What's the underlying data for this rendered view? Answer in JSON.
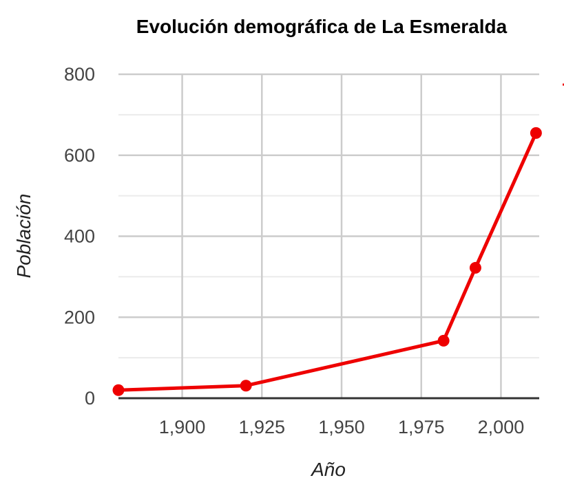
{
  "chart_data": {
    "type": "line",
    "title": "Evolución demográfica de La Esmeralda",
    "xlabel": "Año",
    "ylabel": "Población",
    "xlim": [
      1880,
      2012
    ],
    "ylim": [
      0,
      800
    ],
    "x_ticks": [
      1900,
      1925,
      1950,
      1975,
      2000
    ],
    "x_tick_labels": [
      "1,900",
      "1,925",
      "1,950",
      "1,975",
      "2,000"
    ],
    "y_ticks": [
      0,
      200,
      400,
      600,
      800
    ],
    "y_tick_labels": [
      "0",
      "200",
      "400",
      "600",
      "800"
    ],
    "grid": true,
    "legend": "right (truncated)",
    "series": [
      {
        "color": "#ee0000",
        "x": [
          1880,
          1920,
          1982,
          1992,
          2011
        ],
        "y": [
          20,
          31,
          142,
          322,
          655
        ]
      }
    ]
  }
}
